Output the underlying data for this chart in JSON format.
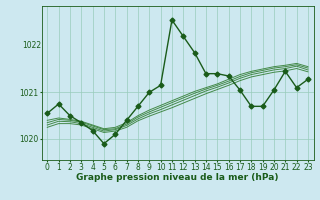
{
  "xlabel": "Graphe pression niveau de la mer (hPa)",
  "background_color": "#cde8f0",
  "grid_color": "#99ccbb",
  "line_color_dark": "#1a5c1a",
  "line_color_light": "#2d7a2d",
  "ylim_min": 1019.55,
  "ylim_max": 1022.85,
  "ytick_positions": [
    1020,
    1021
  ],
  "ytick_top": 1022,
  "xticks": [
    0,
    1,
    2,
    3,
    4,
    5,
    6,
    7,
    8,
    9,
    10,
    11,
    12,
    13,
    14,
    15,
    16,
    17,
    18,
    19,
    20,
    21,
    22,
    23
  ],
  "series_main": [
    1020.55,
    1020.75,
    1020.5,
    1020.35,
    1020.18,
    1019.9,
    1020.1,
    1020.4,
    1020.7,
    1021.0,
    1021.15,
    1022.55,
    1022.2,
    1021.85,
    1021.4,
    1021.4,
    1021.35,
    1021.05,
    1020.7,
    1020.7,
    1021.05,
    1021.45,
    1021.1,
    1021.28
  ],
  "series_fan1": [
    1020.4,
    1020.45,
    1020.42,
    1020.38,
    1020.3,
    1020.22,
    1020.25,
    1020.35,
    1020.5,
    1020.62,
    1020.72,
    1020.82,
    1020.92,
    1021.02,
    1021.1,
    1021.18,
    1021.28,
    1021.38,
    1021.45,
    1021.5,
    1021.55,
    1021.58,
    1021.62,
    1021.55
  ],
  "series_fan2": [
    1020.35,
    1020.42,
    1020.4,
    1020.36,
    1020.28,
    1020.2,
    1020.22,
    1020.32,
    1020.47,
    1020.58,
    1020.68,
    1020.78,
    1020.88,
    1020.98,
    1021.07,
    1021.15,
    1021.24,
    1021.34,
    1021.42,
    1021.47,
    1021.52,
    1021.55,
    1021.59,
    1021.52
  ],
  "series_fan3": [
    1020.3,
    1020.38,
    1020.37,
    1020.33,
    1020.25,
    1020.17,
    1020.2,
    1020.29,
    1020.43,
    1020.54,
    1020.63,
    1020.73,
    1020.83,
    1020.93,
    1021.03,
    1021.11,
    1021.2,
    1021.3,
    1021.38,
    1021.43,
    1021.48,
    1021.51,
    1021.56,
    1021.48
  ],
  "series_fan4": [
    1020.25,
    1020.33,
    1020.33,
    1020.3,
    1020.22,
    1020.14,
    1020.17,
    1020.25,
    1020.39,
    1020.49,
    1020.58,
    1020.67,
    1020.77,
    1020.87,
    1020.97,
    1021.06,
    1021.15,
    1021.25,
    1021.33,
    1021.38,
    1021.43,
    1021.46,
    1021.51,
    1021.44
  ],
  "marker": "D",
  "markersize": 2.5,
  "linewidth_main": 1.0,
  "linewidth_fan": 0.7,
  "xlabel_fontsize": 6.5,
  "tick_fontsize": 5.5
}
